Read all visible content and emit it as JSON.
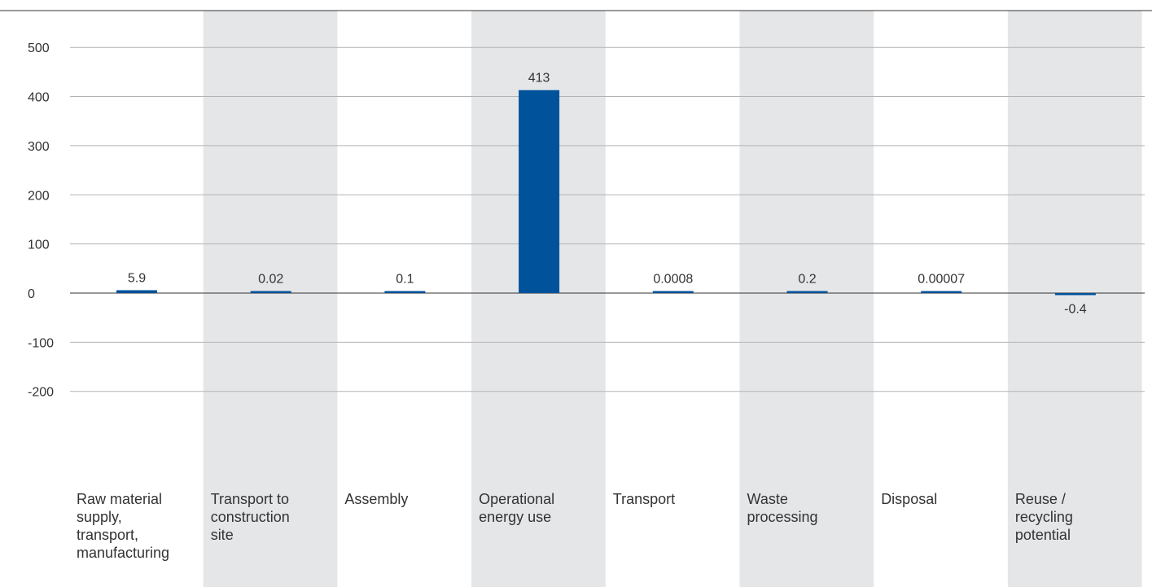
{
  "chart_data": {
    "type": "bar",
    "title": "",
    "xlabel": "",
    "ylabel": "",
    "categories": [
      "Raw material\nsupply,\ntransport,\nmanufacturing",
      "Transport to\nconstruction\nsite",
      "Assembly",
      "Operational\nenergy use",
      "Transport",
      "Waste\nprocessing",
      "Disposal",
      "Reuse /\nrecycling\npotential"
    ],
    "values": [
      5.9,
      0.02,
      0.1,
      413,
      0.0008,
      0.2,
      7e-05,
      -0.4
    ],
    "value_labels": [
      "5.9",
      "0.02",
      "0.1",
      "413",
      "0.0008",
      "0.2",
      "0.00007",
      "-0.4"
    ],
    "yticks": [
      500,
      400,
      300,
      200,
      100,
      0,
      -100,
      -200
    ],
    "ytick_labels": [
      "500",
      "400",
      "300",
      "200",
      "100",
      "0",
      "-100",
      "-200"
    ],
    "ylim": [
      -200,
      500
    ],
    "grid": true,
    "legend": "none",
    "colors": {
      "bar": "#00529b",
      "band": "#e5e6e8",
      "grid": "#b3b3b3",
      "axis": "#333333"
    }
  }
}
